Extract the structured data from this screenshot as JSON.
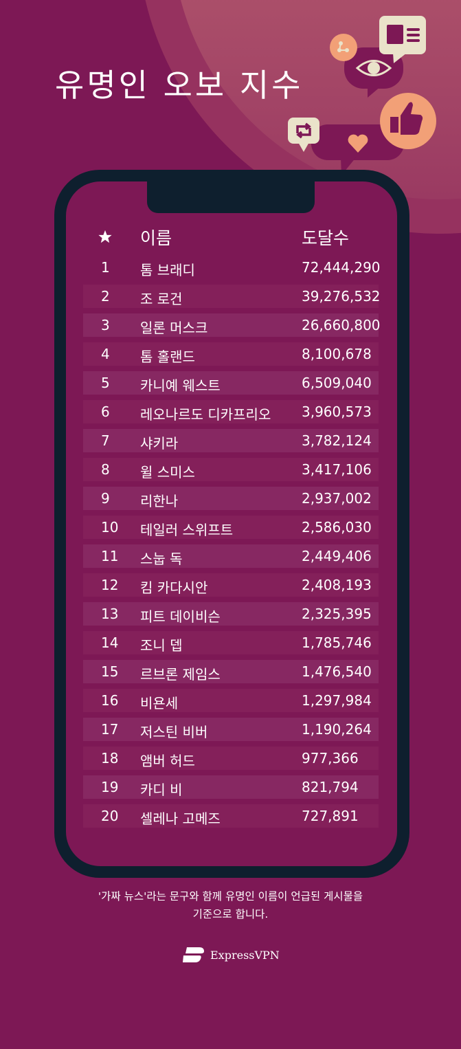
{
  "title": "유명인 오보 지수",
  "table": {
    "rank_header_icon": "star-icon",
    "name_header": "이름",
    "value_header": "도달수",
    "rows": [
      {
        "rank": "1",
        "name": "톰 브래디",
        "value": "72,444,290"
      },
      {
        "rank": "2",
        "name": "조 로건",
        "value": "39,276,532"
      },
      {
        "rank": "3",
        "name": "일론 머스크",
        "value": "26,660,800"
      },
      {
        "rank": "4",
        "name": "톰 홀랜드",
        "value": "8,100,678"
      },
      {
        "rank": "5",
        "name": "카니예 웨스트",
        "value": "6,509,040"
      },
      {
        "rank": "6",
        "name": "레오나르도 디카프리오",
        "value": "3,960,573"
      },
      {
        "rank": "7",
        "name": "샤키라",
        "value": "3,782,124"
      },
      {
        "rank": "8",
        "name": "윌 스미스",
        "value": "3,417,106"
      },
      {
        "rank": "9",
        "name": "리한나",
        "value": "2,937,002"
      },
      {
        "rank": "10",
        "name": "테일러 스위프트",
        "value": "2,586,030"
      },
      {
        "rank": "11",
        "name": "스눕 독",
        "value": "2,449,406"
      },
      {
        "rank": "12",
        "name": "킴 카다시안",
        "value": "2,408,193"
      },
      {
        "rank": "13",
        "name": "피트 데이비슨",
        "value": "2,325,395"
      },
      {
        "rank": "14",
        "name": "조니 뎁",
        "value": "1,785,746"
      },
      {
        "rank": "15",
        "name": "르브론 제임스",
        "value": "1,476,540"
      },
      {
        "rank": "16",
        "name": "비욘세",
        "value": "1,297,984"
      },
      {
        "rank": "17",
        "name": "저스틴 비버",
        "value": "1,190,264"
      },
      {
        "rank": "18",
        "name": "앰버 허드",
        "value": "977,366"
      },
      {
        "rank": "19",
        "name": "카디 비",
        "value": "821,794"
      },
      {
        "rank": "20",
        "name": "셀레나 고메즈",
        "value": "727,891"
      }
    ]
  },
  "footnote_line1": "'가짜 뉴스'라는 문구와 함께 유명인 이름이 언급된 게시물을",
  "footnote_line2": "기준으로 합니다.",
  "brand": "ExpressVPN",
  "colors": {
    "background": "#7D1855",
    "phone": "#0E1F2E",
    "accent": "#F2A077",
    "cream": "#EAE3CA"
  }
}
